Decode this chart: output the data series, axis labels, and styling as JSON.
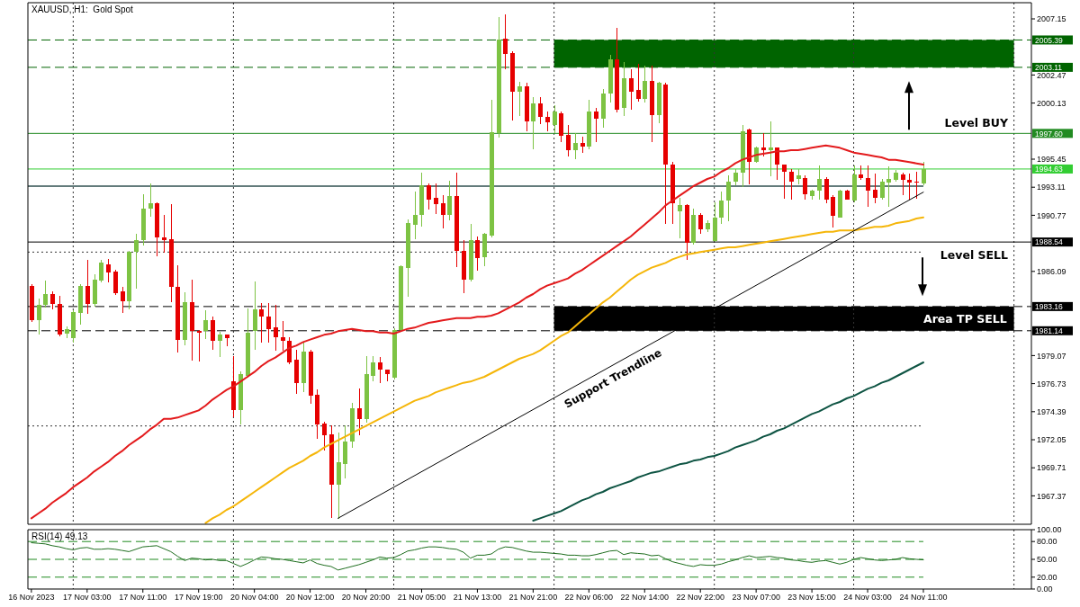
{
  "chart_data": [
    {
      "type": "candlestick",
      "title": "XAUUSD, H1:  Gold Spot",
      "categories": [
        null,
        null,
        null,
        null,
        null,
        null,
        null,
        null,
        null,
        null,
        null,
        null,
        null,
        null,
        null,
        null,
        null,
        null,
        null,
        null,
        null,
        null,
        null,
        null,
        null,
        null,
        null,
        null,
        null,
        null,
        null,
        null,
        null,
        null,
        null,
        null,
        null,
        null,
        null,
        null,
        null,
        null,
        null,
        null,
        null,
        null,
        null,
        null,
        null,
        null,
        null,
        null,
        null,
        null,
        null,
        null,
        null,
        null,
        null,
        null,
        null,
        null,
        null,
        null,
        null,
        null,
        null,
        null,
        null,
        null,
        null,
        null,
        null,
        null,
        null,
        null,
        null,
        null,
        null,
        null,
        null,
        null,
        null,
        null,
        null,
        null,
        null,
        null,
        null,
        null,
        null,
        null,
        null,
        null,
        null,
        null,
        null,
        null,
        null,
        null,
        null,
        null,
        null,
        null,
        null,
        null,
        null,
        null,
        null,
        null,
        null,
        null,
        null,
        null,
        null,
        null,
        null,
        null,
        null,
        null,
        null,
        null,
        null,
        null,
        null,
        null,
        null,
        null,
        null
      ],
      "ohlc": [
        [
          1984.9,
          1985.0,
          1981.9,
          1982.0
        ],
        [
          1982.0,
          1983.8,
          1980.9,
          1983.3
        ],
        [
          1983.3,
          1985.3,
          1983.1,
          1984.2
        ],
        [
          1984.2,
          1984.4,
          1983.0,
          1983.4
        ],
        [
          1983.4,
          1984.0,
          1980.7,
          1980.8
        ],
        [
          1980.9,
          1981.5,
          1980.6,
          1981.3
        ],
        [
          1980.5,
          1982.8,
          1980.2,
          1982.7
        ],
        [
          1982.6,
          1985.0,
          1981.7,
          1984.9
        ],
        [
          1984.9,
          1987.0,
          1982.6,
          1983.4
        ],
        [
          1983.4,
          1985.8,
          1983.2,
          1985.4
        ],
        [
          1985.3,
          1987.0,
          1985.2,
          1986.8
        ],
        [
          1986.7,
          1987.1,
          1985.2,
          1986.0
        ],
        [
          1986.1,
          1986.2,
          1984.2,
          1984.3
        ],
        [
          1984.4,
          1984.8,
          1982.7,
          1983.6
        ],
        [
          1983.6,
          1987.8,
          1983.0,
          1987.7
        ],
        [
          1987.7,
          1989.2,
          1984.7,
          1988.7
        ],
        [
          1988.7,
          1992.5,
          1988.3,
          1991.3
        ],
        [
          1991.3,
          1993.4,
          1990.7,
          1991.8
        ],
        [
          1991.8,
          1991.8,
          1987.4,
          1988.9
        ],
        [
          1988.9,
          1990.8,
          1987.7,
          1988.7
        ],
        [
          1988.8,
          1991.7,
          1983.6,
          1984.8
        ],
        [
          1984.8,
          1986.6,
          1979.4,
          1980.4
        ],
        [
          1980.4,
          1984.3,
          1980.0,
          1983.5
        ],
        [
          1983.5,
          1985.4,
          1978.7,
          1981.1
        ],
        [
          1981.1,
          1981.2,
          1978.6,
          1981.0
        ],
        [
          1981.1,
          1982.8,
          1980.5,
          1982.0
        ],
        [
          1982.0,
          1982.3,
          1979.6,
          1980.3
        ],
        [
          1980.3,
          1981.0,
          1979.0,
          1980.8
        ],
        [
          1980.8,
          1980.8,
          1979.9,
          1980.5
        ],
        [
          1976.9,
          1979.0,
          1974.0,
          1974.5
        ],
        [
          1974.5,
          1977.7,
          1973.4,
          1977.5
        ],
        [
          1977.4,
          1983.0,
          1977.3,
          1981.0
        ],
        [
          1981.1,
          1985.2,
          1979.6,
          1982.9
        ],
        [
          1982.9,
          1983.4,
          1980.2,
          1982.3
        ],
        [
          1982.3,
          1983.4,
          1980.2,
          1981.3
        ],
        [
          1981.4,
          1983.3,
          1979.5,
          1980.6
        ],
        [
          1980.6,
          1981.9,
          1979.5,
          1980.3
        ],
        [
          1980.3,
          1980.6,
          1978.4,
          1978.5
        ],
        [
          1978.7,
          1979.5,
          1975.9,
          1976.8
        ],
        [
          1976.8,
          1980.1,
          1976.1,
          1979.4
        ],
        [
          1979.4,
          1979.5,
          1975.1,
          1975.7
        ],
        [
          1975.8,
          1976.2,
          1972.2,
          1973.3
        ],
        [
          1973.4,
          1973.5,
          1971.2,
          1972.4
        ],
        [
          1972.5,
          1973.2,
          1965.6,
          1968.3
        ],
        [
          1968.3,
          1972.6,
          1965.5,
          1970.2
        ],
        [
          1970.0,
          1973.2,
          1968.9,
          1971.9
        ],
        [
          1971.9,
          1975.1,
          1971.4,
          1974.7
        ],
        [
          1974.7,
          1976.3,
          1972.5,
          1973.8
        ],
        [
          1973.8,
          1979.0,
          1973.5,
          1977.5
        ],
        [
          1977.4,
          1979.0,
          1977.0,
          1978.5
        ],
        [
          1978.5,
          1978.9,
          1976.8,
          1977.9
        ],
        [
          1977.9,
          1977.9,
          1977.0,
          1977.5
        ],
        [
          1977.2,
          1981.3,
          1977.1,
          1981.2
        ],
        [
          1981.2,
          1986.6,
          1981.2,
          1986.5
        ],
        [
          1986.4,
          1990.4,
          1984.0,
          1990.1
        ],
        [
          1990.0,
          1992.7,
          1988.8,
          1990.8
        ],
        [
          1990.8,
          1994.3,
          1989.9,
          1993.3
        ],
        [
          1993.3,
          1993.4,
          1991.3,
          1992.1
        ],
        [
          1992.2,
          1993.4,
          1990.9,
          1991.7
        ],
        [
          1991.8,
          1992.4,
          1989.7,
          1990.8
        ],
        [
          1990.8,
          1993.6,
          1990.4,
          1992.4
        ],
        [
          1992.4,
          1994.3,
          1986.5,
          1987.8
        ],
        [
          1987.8,
          1988.7,
          1984.3,
          1985.4
        ],
        [
          1985.4,
          1990.0,
          1985.3,
          1988.7
        ],
        [
          1988.7,
          1989.0,
          1986.2,
          1987.2
        ],
        [
          1987.3,
          1989.3,
          1986.6,
          1989.2
        ],
        [
          1989.1,
          2000.4,
          1989.0,
          1997.7
        ],
        [
          1997.6,
          2007.3,
          1997.3,
          2005.4
        ],
        [
          2005.5,
          2007.5,
          2003.0,
          2004.2
        ],
        [
          2004.3,
          2004.4,
          1998.7,
          2001.1
        ],
        [
          2001.1,
          2001.9,
          1999.1,
          2001.5
        ],
        [
          2001.5,
          2001.8,
          1997.8,
          1998.6
        ],
        [
          1998.6,
          2000.6,
          1996.3,
          2000.1
        ],
        [
          2000.1,
          2000.6,
          1998.4,
          1999.0
        ],
        [
          1999.0,
          1999.4,
          1997.8,
          1998.5
        ],
        [
          1998.3,
          1999.9,
          1997.7,
          1999.4
        ],
        [
          1999.3,
          1999.4,
          1996.9,
          1997.4
        ],
        [
          1997.5,
          1998.3,
          1995.7,
          1996.2
        ],
        [
          1996.2,
          1997.6,
          1995.5,
          1996.8
        ],
        [
          1996.8,
          1997.3,
          1996.0,
          1996.5
        ],
        [
          1996.5,
          2000.4,
          1996.3,
          1999.4
        ],
        [
          1999.4,
          1999.7,
          1996.9,
          1998.8
        ],
        [
          1998.8,
          2001.3,
          1998.1,
          2000.9
        ],
        [
          2000.9,
          2004.1,
          2000.2,
          2003.8
        ],
        [
          2003.8,
          2006.4,
          1999.4,
          1999.6
        ],
        [
          1999.7,
          2003.5,
          1999.1,
          2002.2
        ],
        [
          2002.2,
          2002.9,
          1999.6,
          2001.1
        ],
        [
          2001.2,
          2003.4,
          2000.3,
          2000.5
        ],
        [
          2000.5,
          2003.2,
          2000.2,
          2002.0
        ],
        [
          2002.0,
          2003.2,
          1996.9,
          1999.1
        ],
        [
          1999.1,
          2001.9,
          1998.5,
          2001.8
        ],
        [
          2001.7,
          2001.8,
          1990.1,
          1995.0
        ],
        [
          1995.0,
          1995.2,
          1990.1,
          1991.8
        ],
        [
          1991.1,
          1992.2,
          1988.9,
          1991.6
        ],
        [
          1991.6,
          1991.7,
          1987.1,
          1988.5
        ],
        [
          1988.5,
          1991.3,
          1988.4,
          1990.8
        ],
        [
          1990.8,
          1990.9,
          1989.3,
          1989.6
        ],
        [
          1989.6,
          1990.3,
          1989.4,
          1990.1
        ],
        [
          1988.6,
          1991.8,
          1988.6,
          1990.6
        ],
        [
          1990.6,
          1992.7,
          1990.1,
          1992.0
        ],
        [
          1992.0,
          1994.1,
          1990.3,
          1993.6
        ],
        [
          1993.6,
          1994.6,
          1993.3,
          1994.3
        ],
        [
          1994.3,
          1998.3,
          1993.2,
          1997.8
        ],
        [
          1997.9,
          1998.0,
          1993.4,
          1995.2
        ],
        [
          1995.2,
          1996.5,
          1995.2,
          1996.4
        ],
        [
          1996.4,
          1997.6,
          1995.7,
          1996.2
        ],
        [
          1996.2,
          1998.6,
          1994.1,
          1996.4
        ],
        [
          1996.4,
          1996.4,
          1993.8,
          1995.0
        ],
        [
          1995.0,
          1995.0,
          1992.2,
          1994.4
        ],
        [
          1994.4,
          1994.6,
          1992.1,
          1993.6
        ],
        [
          1993.8,
          1994.6,
          1993.4,
          1994.1
        ],
        [
          1993.9,
          1994.1,
          1992.1,
          1992.5
        ],
        [
          1992.4,
          1992.9,
          1992.1,
          1992.8
        ],
        [
          1992.8,
          1994.9,
          1992.1,
          1993.8
        ],
        [
          1993.8,
          1993.9,
          1991.8,
          1992.1
        ],
        [
          1992.3,
          1992.4,
          1989.8,
          1990.7
        ],
        [
          1990.6,
          1992.9,
          1990.6,
          1992.8
        ],
        [
          1992.8,
          1992.9,
          1992.1,
          1992.1
        ],
        [
          1992.0,
          1994.9,
          1991.9,
          1994.2
        ],
        [
          1994.2,
          1994.9,
          1993.8,
          1993.9
        ],
        [
          1993.9,
          1994.9,
          1991.5,
          1992.8
        ],
        [
          1992.9,
          1994.2,
          1991.8,
          1992.2
        ],
        [
          1992.2,
          1993.8,
          1992.1,
          1993.6
        ],
        [
          1993.5,
          1994.8,
          1991.5,
          1993.8
        ],
        [
          1993.7,
          1994.5,
          1993.6,
          1994.3
        ],
        [
          1994.2,
          1994.3,
          1992.5,
          1993.7
        ],
        [
          1993.7,
          1994.2,
          1992.1,
          1993.5
        ],
        [
          1993.6,
          1994.4,
          1992.2,
          1993.5
        ],
        [
          1993.4,
          1995.2,
          1993.3,
          1994.63
        ]
      ],
      "colors": [
        "#e60000",
        "#7dc343",
        "#7dc343",
        "#e60000",
        "#e60000",
        "#7dc343",
        "#7dc343",
        "#7dc343",
        "#e60000",
        "#7dc343",
        "#7dc343",
        "#e60000",
        "#e60000",
        "#e60000",
        "#7dc343",
        "#7dc343",
        "#7dc343",
        "#7dc343",
        "#e60000",
        "#e60000",
        "#e60000",
        "#e60000",
        "#7dc343",
        "#e60000",
        "#e60000",
        "#7dc343",
        "#e60000",
        "#7dc343",
        "#e60000",
        "#e60000",
        "#7dc343",
        "#7dc343",
        "#7dc343",
        "#e60000",
        "#e60000",
        "#e60000",
        "#e60000",
        "#e60000",
        "#e60000",
        "#7dc343",
        "#e60000",
        "#e60000",
        "#e60000",
        "#e60000",
        "#7dc343",
        "#7dc343",
        "#7dc343",
        "#e60000",
        "#7dc343",
        "#7dc343",
        "#e60000",
        "#e60000",
        "#7dc343",
        "#7dc343",
        "#7dc343",
        "#7dc343",
        "#7dc343",
        "#e60000",
        "#e60000",
        "#e60000",
        "#7dc343",
        "#e60000",
        "#e60000",
        "#7dc343",
        "#e60000",
        "#7dc343",
        "#7dc343",
        "#7dc343",
        "#e60000",
        "#e60000",
        "#7dc343",
        "#e60000",
        "#7dc343",
        "#e60000",
        "#e60000",
        "#7dc343",
        "#e60000",
        "#e60000",
        "#7dc343",
        "#e60000",
        "#7dc343",
        "#e60000",
        "#7dc343",
        "#7dc343",
        "#e60000",
        "#7dc343",
        "#e60000",
        "#e60000",
        "#7dc343",
        "#e60000",
        "#7dc343",
        "#e60000",
        "#e60000",
        "#7dc343",
        "#e60000",
        "#7dc343",
        "#e60000",
        "#7dc343",
        "#7dc343",
        "#7dc343",
        "#7dc343",
        "#7dc343",
        "#7dc343",
        "#e60000",
        "#7dc343",
        "#e60000",
        "#7dc343",
        "#e60000",
        "#e60000",
        "#e60000",
        "#7dc343",
        "#e60000",
        "#7dc343",
        "#7dc343",
        "#e60000",
        "#e60000",
        "#7dc343",
        "#e60000",
        "#7dc343",
        "#e60000",
        "#e60000",
        "#e60000",
        "#7dc343",
        "#7dc343",
        "#7dc343",
        "#e60000",
        "#e60000",
        "#e60000",
        "#7dc343"
      ],
      "series": [
        {
          "type": "line",
          "color": "#e31a1c",
          "values": [
            1965.5,
            1965.9,
            1966.3,
            1966.8,
            1967.2,
            1967.6,
            1968.1,
            1968.5,
            1968.9,
            1969.4,
            1969.8,
            1970.2,
            1970.7,
            1971.1,
            1971.6,
            1972.0,
            1972.4,
            1972.9,
            1973.3,
            1973.8,
            1973.8,
            1973.9,
            1974.1,
            1974.3,
            1974.5,
            1974.9,
            1975.4,
            1975.8,
            1976.2,
            1976.5,
            1976.9,
            1977.3,
            1977.7,
            1978.2,
            1978.6,
            1978.9,
            1979.3,
            1979.7,
            1979.9,
            1980.2,
            1980.4,
            1980.6,
            1980.8,
            1980.9,
            1981.1,
            1981.2,
            1981.3,
            1981.2,
            1981.1,
            1981.1,
            1981.0,
            1981.0,
            1980.9,
            1981.1,
            1981.3,
            1981.4,
            1981.6,
            1981.8,
            1981.9,
            1982.0,
            1982.1,
            1982.2,
            1982.2,
            1982.2,
            1982.3,
            1982.3,
            1982.4,
            1982.6,
            1982.9,
            1983.2,
            1983.5,
            1983.9,
            1984.2,
            1984.6,
            1984.9,
            1985.1,
            1985.3,
            1985.5,
            1985.9,
            1986.2,
            1986.6,
            1987.0,
            1987.4,
            1987.8,
            1988.2,
            1988.6,
            1989.0,
            1989.5,
            1990.0,
            1990.5,
            1991.0,
            1991.6,
            1992.0,
            1992.4,
            1992.8,
            1993.2,
            1993.5,
            1993.8,
            1994.0,
            1994.4,
            1994.7,
            1995.1,
            1995.4,
            1995.6,
            1995.8,
            1995.9,
            1996.0,
            1996.1,
            1996.1,
            1996.2,
            1996.2,
            1996.3,
            1996.4,
            1996.5,
            1996.6,
            1996.5,
            1996.4,
            1996.2,
            1996.0,
            1995.9,
            1995.8,
            1995.7,
            1995.6,
            1995.4,
            1995.4,
            1995.3,
            1995.2,
            1995.1,
            1995.0
          ]
        },
        {
          "type": "line",
          "color": "#f5b60a",
          "values": [
            null,
            null,
            null,
            null,
            null,
            null,
            null,
            null,
            null,
            null,
            null,
            null,
            null,
            null,
            null,
            null,
            null,
            null,
            null,
            null,
            null,
            null,
            null,
            null,
            null,
            1965.1,
            1965.5,
            1965.8,
            1966.2,
            1966.5,
            1966.9,
            1967.3,
            1967.7,
            1968.1,
            1968.5,
            1968.9,
            1969.3,
            1969.7,
            1970.0,
            1970.3,
            1970.7,
            1971.0,
            1971.4,
            1971.7,
            1972.0,
            1972.3,
            1972.6,
            1972.9,
            1973.2,
            1973.5,
            1973.8,
            1974.1,
            1974.4,
            1974.7,
            1975.0,
            1975.3,
            1975.5,
            1975.7,
            1976.0,
            1976.2,
            1976.4,
            1976.6,
            1976.8,
            1976.9,
            1977.1,
            1977.3,
            1977.6,
            1977.9,
            1978.2,
            1978.5,
            1978.8,
            1979.0,
            1979.2,
            1979.5,
            1979.9,
            1980.3,
            1980.7,
            1981.0,
            1981.5,
            1982.0,
            1982.5,
            1983.0,
            1983.5,
            1983.9,
            1984.4,
            1984.9,
            1985.4,
            1985.8,
            1986.1,
            1986.4,
            1986.6,
            1986.8,
            1987.1,
            1987.3,
            1987.5,
            1987.6,
            1987.7,
            1987.8,
            1987.9,
            1988.0,
            1988.1,
            1988.1,
            1988.2,
            1988.3,
            1988.4,
            1988.5,
            1988.6,
            1988.7,
            1988.8,
            1988.9,
            1989.0,
            1989.1,
            1989.2,
            1989.3,
            1989.4,
            1989.4,
            1989.5,
            1989.5,
            1989.5,
            1989.6,
            1989.7,
            1989.8,
            1989.8,
            1989.9,
            1990.1,
            1990.2,
            1990.3,
            1990.5,
            1990.6
          ]
        },
        {
          "type": "line",
          "color": "#0e5443",
          "values": [
            null,
            null,
            null,
            null,
            null,
            null,
            null,
            null,
            null,
            null,
            null,
            null,
            null,
            null,
            null,
            null,
            null,
            null,
            null,
            null,
            null,
            null,
            null,
            null,
            null,
            null,
            null,
            null,
            null,
            null,
            null,
            null,
            null,
            null,
            null,
            null,
            null,
            null,
            null,
            null,
            null,
            null,
            null,
            null,
            null,
            null,
            null,
            null,
            null,
            null,
            null,
            null,
            null,
            null,
            null,
            null,
            null,
            null,
            null,
            null,
            null,
            null,
            null,
            null,
            null,
            null,
            null,
            null,
            null,
            null,
            null,
            null,
            1965.3,
            1965.5,
            1965.7,
            1965.9,
            1966.1,
            1966.4,
            1966.7,
            1967.0,
            1967.2,
            1967.5,
            1967.7,
            1968.0,
            1968.2,
            1968.4,
            1968.6,
            1968.9,
            1969.1,
            1969.3,
            1969.4,
            1969.6,
            1969.8,
            1970.0,
            1970.1,
            1970.3,
            1970.4,
            1970.6,
            1970.7,
            1970.9,
            1971.1,
            1971.4,
            1971.6,
            1971.8,
            1972.0,
            1972.3,
            1972.5,
            1972.8,
            1973.0,
            1973.3,
            1973.6,
            1973.9,
            1974.2,
            1974.4,
            1974.7,
            1975.0,
            1975.2,
            1975.5,
            1975.7,
            1976.0,
            1976.3,
            1976.5,
            1976.8,
            1977.0,
            1977.3,
            1977.6,
            1977.9,
            1978.2,
            1978.5
          ]
        },
        {
          "type": "line",
          "color": "#000000",
          "values": [
            null,
            null,
            null,
            null,
            null,
            null,
            null,
            null,
            null,
            null,
            null,
            null,
            null,
            null,
            null,
            null,
            null,
            null,
            null,
            null,
            null,
            null,
            null,
            null,
            null,
            null,
            null,
            null,
            null,
            null,
            null,
            null,
            null,
            null,
            null,
            null,
            null,
            null,
            null,
            null,
            null,
            null,
            null,
            null,
            1965.5,
            null,
            null,
            null,
            null,
            null,
            null,
            null,
            null,
            null,
            null,
            null,
            null,
            null,
            null,
            null,
            null,
            null,
            null,
            null,
            null,
            null,
            null,
            null,
            null,
            null,
            null,
            null,
            null,
            null,
            null,
            null,
            null,
            null,
            null,
            null,
            null,
            null,
            null,
            null,
            null,
            null,
            null,
            null,
            null,
            null,
            null,
            null,
            null,
            null,
            null,
            null,
            null,
            null,
            null,
            null,
            null,
            null,
            null,
            null,
            null,
            null,
            null,
            null,
            null,
            null,
            null,
            null,
            null,
            null,
            null,
            null,
            null,
            null,
            null,
            null,
            null,
            null,
            null,
            null,
            null,
            null,
            null,
            null,
            1992.7
          ]
        }
      ],
      "ylim": [
        1965.0,
        2008.5
      ],
      "yticks": [
        1967.37,
        1969.71,
        1972.05,
        1974.39,
        1976.73,
        1979.07,
        1986.09,
        1990.77,
        1993.11,
        1995.45,
        2000.13,
        2002.47,
        2007.15
      ],
      "tick_labels": "y",
      "ref_lines": [
        {
          "axis": "y",
          "value": 2005.39,
          "label": "2005.39",
          "color": "#006400",
          "line_style": "dashed"
        },
        {
          "axis": "y",
          "value": 2003.11,
          "label": "2003.11",
          "color": "#006400",
          "line_style": "dashed"
        },
        {
          "axis": "y",
          "value": 1997.6,
          "label": "1997.60",
          "color": "#228b22",
          "line_style": "solid"
        },
        {
          "axis": "y",
          "value": 1994.63,
          "label": "1994.63",
          "color": "#32cd32",
          "line_style": "solid"
        },
        {
          "axis": "y",
          "value": 1993.2,
          "color": "#2f4f4f",
          "line_style": "solid"
        },
        {
          "axis": "y",
          "value": 1988.54,
          "label": "1988.54",
          "color": "#000000",
          "line_style": "solid"
        },
        {
          "axis": "y",
          "value": 1987.7,
          "color": "#333333",
          "line_style": "dotted"
        },
        {
          "axis": "y",
          "value": 1983.16,
          "label": "1983.16",
          "color": "#000000",
          "line_style": "dashed"
        },
        {
          "axis": "y",
          "value": 1981.14,
          "label": "1981.14",
          "color": "#000000",
          "line_style": "dashed"
        },
        {
          "axis": "y",
          "value": 1973.2,
          "color": "#333333",
          "line_style": "dotted"
        }
      ],
      "bands": [
        {
          "axis": "y",
          "from": 2003.11,
          "to": 2005.39,
          "color": "#006400"
        },
        {
          "axis": "y",
          "from": 1981.14,
          "to": 1983.16,
          "label": "Area TP SELL",
          "color": "#000000"
        }
      ],
      "annotations": [
        {
          "text": "Level BUY",
          "y": 1997.6
        },
        {
          "text": "Level SELL",
          "y": 1988.54
        },
        "Support Trendline"
      ]
    },
    {
      "type": "line",
      "title": "RSI(14) 49.13",
      "categories": [
        "16 Nov 2023",
        null,
        null,
        null,
        null,
        null,
        null,
        null,
        "17 Nov 03:00",
        null,
        null,
        null,
        null,
        null,
        null,
        null,
        "17 Nov 11:00",
        null,
        null,
        null,
        null,
        null,
        null,
        null,
        "17 Nov 19:00",
        null,
        null,
        null,
        null,
        null,
        null,
        null,
        "20 Nov 04:00",
        null,
        null,
        null,
        null,
        null,
        null,
        null,
        "20 Nov 12:00",
        null,
        null,
        null,
        null,
        null,
        null,
        null,
        "20 Nov 20:00",
        null,
        null,
        null,
        null,
        null,
        null,
        null,
        "21 Nov 05:00",
        null,
        null,
        null,
        null,
        null,
        null,
        null,
        "21 Nov 13:00",
        null,
        null,
        null,
        null,
        null,
        null,
        null,
        "21 Nov 21:00",
        null,
        null,
        null,
        null,
        null,
        null,
        null,
        "22 Nov 06:00",
        null,
        null,
        null,
        null,
        null,
        null,
        null,
        "22 Nov 14:00",
        null,
        null,
        null,
        null,
        null,
        null,
        null,
        "22 Nov 22:00",
        null,
        null,
        null,
        null,
        null,
        null,
        null,
        "23 Nov 07:00",
        null,
        null,
        null,
        null,
        null,
        null,
        null,
        "23 Nov 15:00",
        null,
        null,
        null,
        null,
        null,
        null,
        null,
        "24 Nov 03:00",
        null,
        null,
        null,
        null,
        null,
        null,
        null,
        "24 Nov 11:00"
      ],
      "series": [
        {
          "color": "#1f6e1f",
          "values": [
            78,
            77,
            76,
            73,
            71,
            68,
            66,
            69,
            70,
            67,
            67,
            68,
            67,
            65,
            63,
            67,
            71,
            72,
            73,
            68,
            63,
            55,
            48,
            52,
            51,
            49,
            50,
            48,
            48,
            43,
            38,
            43,
            49,
            54,
            53,
            51,
            50,
            48,
            46,
            44,
            49,
            43,
            40,
            38,
            32,
            35,
            38,
            41,
            45,
            49,
            54,
            52,
            53,
            58,
            64,
            66,
            69,
            71,
            71,
            70,
            68,
            67,
            62,
            52,
            57,
            57,
            59,
            67,
            71,
            70,
            67,
            64,
            62,
            62,
            61,
            60,
            59,
            57,
            57,
            56,
            56,
            58,
            61,
            64,
            65,
            58,
            61,
            60,
            59,
            56,
            57,
            51,
            46,
            43,
            40,
            38,
            41,
            40,
            40,
            42,
            46,
            49,
            53,
            56,
            53,
            54,
            55,
            53,
            52,
            49,
            48,
            46,
            45,
            47,
            48,
            45,
            42,
            45,
            50,
            53,
            51,
            49,
            48,
            49,
            50,
            53,
            51,
            50,
            49.13
          ]
        }
      ],
      "ylim": [
        0,
        100
      ],
      "yticks": [
        {
          "value": 0,
          "label": "0.00"
        },
        {
          "value": 20,
          "label": "20.00"
        },
        {
          "value": 50,
          "label": "50.00"
        },
        {
          "value": 80,
          "label": "80.00"
        },
        {
          "value": 100,
          "label": "100.00"
        }
      ],
      "ref_lines": [
        {
          "axis": "y",
          "value": 80,
          "color": "#1f8a1f",
          "line_style": "dashed"
        },
        {
          "axis": "y",
          "value": 50,
          "color": "#1f8a1f",
          "line_style": "dashed"
        },
        {
          "axis": "y",
          "value": 20,
          "color": "#1f8a1f",
          "line_style": "dashed"
        }
      ]
    }
  ]
}
